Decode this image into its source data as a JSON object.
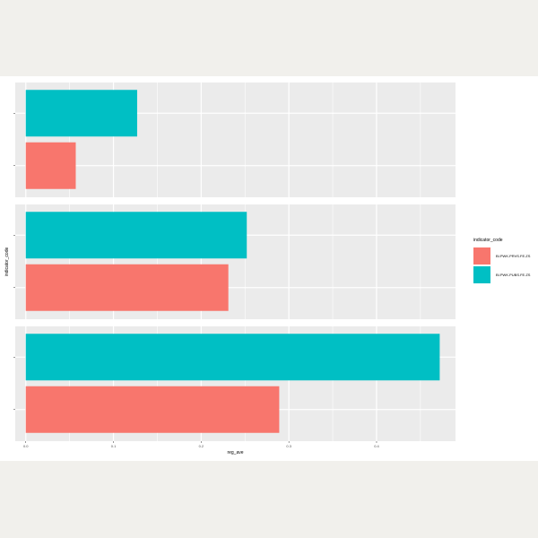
{
  "chart_data": {
    "type": "bar",
    "orientation": "horizontal",
    "title": "",
    "xlabel": "reg_ave",
    "ylabel": "indicator_code",
    "xlim": [
      -0.012,
      0.49
    ],
    "x_ticks": [
      0.0,
      0.1,
      0.2,
      0.3,
      0.4
    ],
    "x_tick_labels": [
      "0.0",
      "0.1",
      "0.2",
      "0.3",
      "0.4"
    ],
    "grid": true,
    "legend": {
      "title": "indicator_code",
      "position": "right",
      "entries": [
        {
          "name": "BI.PWK.PRVS.FE.ZS",
          "color": "#F8766D"
        },
        {
          "name": "BI.PWK.PUBS.FE.ZS",
          "color": "#00BFC4"
        }
      ]
    },
    "panels": [
      {
        "bars": [
          {
            "series": "BI.PWK.PUBS.FE.ZS",
            "value": 0.127
          },
          {
            "series": "BI.PWK.PRVS.FE.ZS",
            "value": 0.057
          }
        ]
      },
      {
        "bars": [
          {
            "series": "BI.PWK.PUBS.FE.ZS",
            "value": 0.252
          },
          {
            "series": "BI.PWK.PRVS.FE.ZS",
            "value": 0.231
          }
        ]
      },
      {
        "bars": [
          {
            "series": "BI.PWK.PUBS.FE.ZS",
            "value": 0.472
          },
          {
            "series": "BI.PWK.PRVS.FE.ZS",
            "value": 0.289
          }
        ]
      }
    ]
  }
}
